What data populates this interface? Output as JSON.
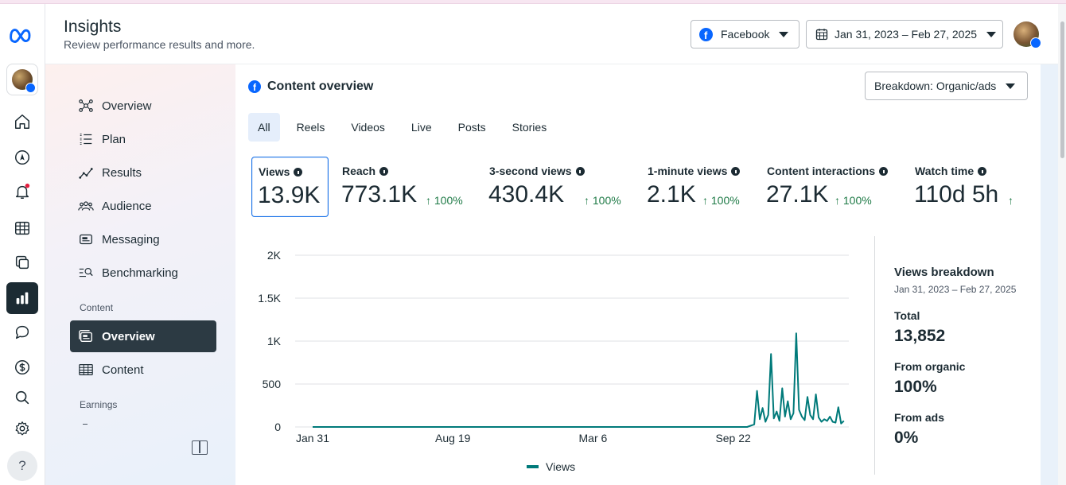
{
  "header": {
    "title": "Insights",
    "subtitle": "Review performance results and more.",
    "platform_button": "Facebook",
    "date_range_button": "Jan 31, 2023 – Feb 27, 2025"
  },
  "rail": {
    "items": [
      "meta-logo",
      "account-avatar",
      "home-icon",
      "compass-icon",
      "bell-icon",
      "grid-icon",
      "pages-icon",
      "insights-icon",
      "chat-icon",
      "dollar-icon",
      "search-icon",
      "settings-icon",
      "help-icon"
    ],
    "help_label": "?"
  },
  "sidebar": {
    "items": [
      {
        "label": "Overview",
        "icon": "network-icon"
      },
      {
        "label": "Plan",
        "icon": "list-icon"
      },
      {
        "label": "Results",
        "icon": "trend-icon"
      },
      {
        "label": "Audience",
        "icon": "people-icon"
      },
      {
        "label": "Messaging",
        "icon": "message-icon"
      },
      {
        "label": "Benchmarking",
        "icon": "benchmark-icon"
      }
    ],
    "content_section": "Content",
    "content_items": [
      {
        "label": "Overview",
        "icon": "overview-icon"
      },
      {
        "label": "Content",
        "icon": "table-icon"
      }
    ],
    "earnings_section": "Earnings"
  },
  "main": {
    "title": "Content overview",
    "breakdown_button": "Breakdown: Organic/ads",
    "tabs": [
      "All",
      "Reels",
      "Videos",
      "Live",
      "Posts",
      "Stories"
    ],
    "active_tab": "All",
    "metrics": [
      {
        "label": "Views",
        "value": "13.9K",
        "delta": ""
      },
      {
        "label": "Reach",
        "value": "773.1K",
        "delta": "↑ 100%"
      },
      {
        "label": "3-second views",
        "value": "430.4K",
        "delta": "↑ 100%"
      },
      {
        "label": "1-minute views",
        "value": "2.1K",
        "delta": "↑ 100%"
      },
      {
        "label": "Content interactions",
        "value": "27.1K",
        "delta": "↑ 100%"
      },
      {
        "label": "Watch time",
        "value": "110d 5h",
        "delta": "↑"
      }
    ],
    "breakdown": {
      "title": "Views breakdown",
      "range": "Jan 31, 2023 – Feb 27, 2025",
      "total_label": "Total",
      "total_value": "13,852",
      "organic_label": "From organic",
      "organic_value": "100%",
      "ads_label": "From ads",
      "ads_value": "0%"
    }
  },
  "colors": {
    "series": "#007a7a",
    "accent": "#0866ff",
    "positive": "#1e7a46",
    "nav_active": "#2c3a43"
  },
  "chart_data": {
    "type": "line",
    "x_tick_labels": [
      "Jan 31",
      "Aug 19",
      "Mar 6",
      "Sep 22"
    ],
    "y_tick_labels": [
      "0",
      "500",
      "1K",
      "1.5K",
      "2K"
    ],
    "ylim": [
      0,
      2000
    ],
    "legend": "Views",
    "legend_position": "bottom",
    "grid": true,
    "series": [
      {
        "name": "Views",
        "x_days": [
          0,
          200,
          500,
          620,
          630,
          634,
          638,
          642,
          646,
          650,
          654,
          658,
          662,
          666,
          670,
          674,
          678,
          682,
          686,
          690,
          694,
          698,
          702,
          706,
          710,
          714,
          718,
          722,
          726,
          730,
          734,
          738,
          742,
          746,
          750,
          754,
          758
        ],
        "values": [
          0,
          0,
          0,
          0,
          30,
          420,
          90,
          220,
          60,
          140,
          850,
          100,
          180,
          70,
          450,
          120,
          300,
          90,
          160,
          1090,
          200,
          120,
          80,
          350,
          140,
          90,
          380,
          110,
          60,
          90,
          70,
          120,
          60,
          50,
          230,
          40,
          70
        ]
      }
    ]
  }
}
